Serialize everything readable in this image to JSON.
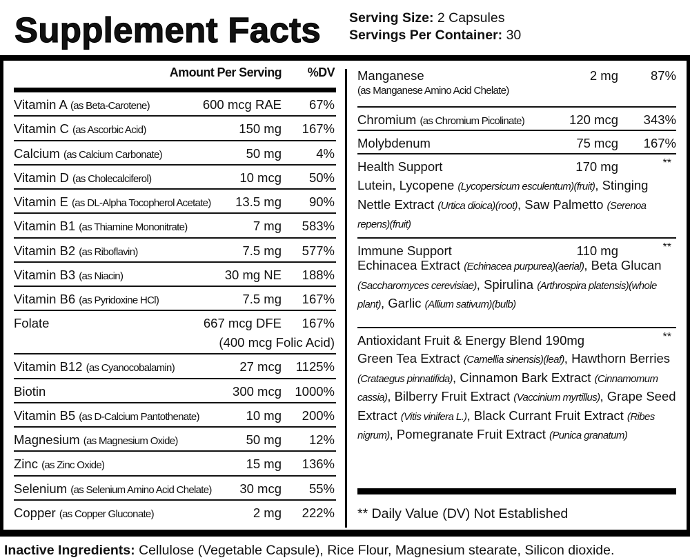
{
  "header": {
    "title": "Supplement Facts",
    "serving_size_label": "Serving Size:",
    "serving_size_value": "2 Capsules",
    "servings_per_container_label": "Servings Per Container:",
    "servings_per_container_value": "30"
  },
  "left": {
    "amount_header": "Amount Per Serving",
    "dv_header": "%DV",
    "rows": [
      {
        "name": "Vitamin A",
        "source": "(as Beta-Carotene)",
        "amount": "600 mcg RAE",
        "dv": "67%"
      },
      {
        "name": "Vitamin C",
        "source": "(as Ascorbic Acid)",
        "amount": "150 mg",
        "dv": "167%"
      },
      {
        "name": "Calcium",
        "source": "(as Calcium Carbonate)",
        "amount": "50 mg",
        "dv": "4%"
      },
      {
        "name": "Vitamin D",
        "source": "(as Cholecalciferol)",
        "amount": "10 mcg",
        "dv": "50%"
      },
      {
        "name": "Vitamin E",
        "source": "(as DL-Alpha Tocopherol Acetate)",
        "amount": "13.5 mg",
        "dv": "90%"
      },
      {
        "name": "Vitamin B1",
        "source": "(as Thiamine Mononitrate)",
        "amount": "7 mg",
        "dv": "583%"
      },
      {
        "name": "Vitamin B2",
        "source": "(as Riboflavin)",
        "amount": "7.5 mg",
        "dv": "577%"
      },
      {
        "name": "Vitamin B3",
        "source": "(as Niacin)",
        "amount": "30 mg NE",
        "dv": "188%"
      },
      {
        "name": "Vitamin B6",
        "source": "(as Pyridoxine HCl)",
        "amount": "7.5 mg",
        "dv": "167%"
      },
      {
        "name": "Folate",
        "source": "",
        "amount": "667 mcg DFE",
        "dv": "167%",
        "amount2": "(400 mcg Folic Acid)"
      },
      {
        "name": "Vitamin B12",
        "source": "(as Cyanocobalamin)",
        "amount": "27 mcg",
        "dv": "1125%"
      },
      {
        "name": "Biotin",
        "source": "",
        "amount": "300 mcg",
        "dv": "1000%"
      },
      {
        "name": "Vitamin B5",
        "source": "(as D-Calcium Pantothenate)",
        "amount": "10 mg",
        "dv": "200%"
      },
      {
        "name": "Magnesium",
        "source": "(as Magnesium Oxide)",
        "amount": "50 mg",
        "dv": "12%"
      },
      {
        "name": "Zinc",
        "source": "(as Zinc Oxide)",
        "amount": "15 mg",
        "dv": "136%"
      },
      {
        "name": "Selenium",
        "source": "(as Selenium Amino Acid Chelate)",
        "amount": "30 mcg",
        "dv": "55%"
      },
      {
        "name": "Copper",
        "source": "(as Copper Gluconate)",
        "amount": "2 mg",
        "dv": "222%"
      }
    ]
  },
  "right": {
    "minerals": [
      {
        "name": "Manganese",
        "source": "(as Manganese Amino Acid Chelate)",
        "amount": "2 mg",
        "dv": "87%"
      },
      {
        "name": "Chromium",
        "source": "(as Chromium Picolinate)",
        "amount": "120 mcg",
        "dv": "343%"
      },
      {
        "name": "Molybdenum",
        "source": "",
        "amount": "75 mcg",
        "dv": "167%"
      }
    ],
    "blends": [
      {
        "name": "Health Support",
        "amount": "170 mg",
        "dv": "**",
        "desc": [
          {
            "t": "Lutein, Lycopene ",
            "i": false
          },
          {
            "t": "(Lycopersicum esculentum)(fruit)",
            "i": true
          },
          {
            "t": ",",
            "i": false
          },
          {
            "t": " Stinging Nettle Extract ",
            "i": false
          },
          {
            "t": "(Urtica dioica)(root)",
            "i": true
          },
          {
            "t": ", Saw Palmetto ",
            "i": false
          },
          {
            "t": "(Serenoa repens)(fruit)",
            "i": true
          }
        ]
      },
      {
        "name": "Immune Support",
        "amount": "110 mg",
        "dv": "**",
        "desc": [
          {
            "t": "Echinacea Extract ",
            "i": false
          },
          {
            "t": "(Echinacea purpurea)(aerial)",
            "i": true
          },
          {
            "t": ", Beta Glucan ",
            "i": false
          },
          {
            "t": "(Saccharomyces cerevisiae)",
            "i": true
          },
          {
            "t": ", Spirulina ",
            "i": false
          },
          {
            "t": "(Arthrospira platensis)(whole plant)",
            "i": true
          },
          {
            "t": ", Garlic ",
            "i": false
          },
          {
            "t": "(Allium sativum)(bulb)",
            "i": true
          }
        ]
      },
      {
        "name": "Antioxidant Fruit & Energy Blend 190mg",
        "amount": "",
        "dv": "**",
        "desc": [
          {
            "t": "Green Tea Extract ",
            "i": false
          },
          {
            "t": "(Camellia sinensis)(leaf)",
            "i": true
          },
          {
            "t": ", Hawthorn Berries ",
            "i": false
          },
          {
            "t": "(Crataegus pinnatifida)",
            "i": true
          },
          {
            "t": ", Cinnamon Bark Extract ",
            "i": false
          },
          {
            "t": "(Cinnamomum cassia)",
            "i": true
          },
          {
            "t": ", Bilberry Fruit Extract ",
            "i": false
          },
          {
            "t": "(Vaccinium myrtillus)",
            "i": true
          },
          {
            "t": ", Grape Seed Extract ",
            "i": false
          },
          {
            "t": "(Vitis vinifera L.)",
            "i": true
          },
          {
            "t": ", Black Currant Fruit Extract ",
            "i": false
          },
          {
            "t": "(Ribes nigrum)",
            "i": true
          },
          {
            "t": ", Pomegranate Fruit Extract ",
            "i": false
          },
          {
            "t": "(Punica granatum)",
            "i": true
          }
        ]
      }
    ],
    "footnote": "** Daily Value (DV) Not Established"
  },
  "inactive": {
    "label": "Inactive Ingredients:",
    "value": "Cellulose (Vegetable Capsule), Rice Flour, Magnesium stearate, Silicon dioxide."
  }
}
